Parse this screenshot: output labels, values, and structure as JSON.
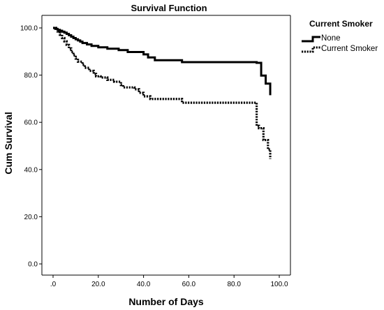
{
  "chart_data": {
    "type": "line",
    "step": true,
    "title": "Survival Function",
    "xlabel": "Number of Days",
    "ylabel": "Cum Survival",
    "xlim": [
      0,
      100
    ],
    "ylim": [
      0,
      100
    ],
    "x_ticks": [
      ".0",
      "20.0",
      "40.0",
      "60.0",
      "80.0",
      "100.0"
    ],
    "y_ticks": [
      "0.0",
      "20.0",
      "40.0",
      "60.0",
      "80.0",
      "100.0"
    ],
    "grid": false,
    "legend": {
      "title": "Current Smoker",
      "position": "top-right"
    },
    "series": [
      {
        "name": "None",
        "style": "solid",
        "color": "#000000",
        "x": [
          0,
          1,
          2,
          3,
          4,
          5,
          6,
          7,
          8,
          9,
          10,
          11,
          12,
          13,
          15,
          17,
          20,
          24,
          29,
          33,
          40,
          42,
          45,
          57,
          90,
          92,
          94,
          96
        ],
        "y": [
          100,
          99.6,
          99.2,
          98.8,
          98.4,
          98.0,
          97.5,
          96.9,
          96.3,
          95.7,
          95.2,
          94.7,
          94.2,
          93.6,
          93.0,
          92.4,
          91.8,
          91.2,
          90.6,
          89.8,
          88.8,
          87.5,
          86.3,
          85.5,
          85.2,
          79.8,
          76.4,
          71.5
        ]
      },
      {
        "name": "Current Smoker",
        "style": "dotted",
        "color": "#000000",
        "x": [
          0,
          2,
          3,
          4,
          5,
          6,
          7,
          8,
          9,
          10,
          11,
          13,
          14,
          16,
          18,
          19,
          21,
          24,
          27,
          30,
          31,
          36,
          38,
          40,
          43,
          57,
          90,
          91,
          93,
          95,
          96
        ],
        "y": [
          100,
          98.5,
          97.1,
          95.7,
          94.3,
          92.8,
          91.3,
          89.8,
          88.4,
          87.0,
          85.7,
          84.4,
          83.1,
          81.8,
          80.5,
          79.5,
          79.0,
          78.0,
          77.2,
          75.8,
          74.8,
          74.0,
          72.5,
          71.0,
          69.9,
          68.3,
          58.5,
          57.5,
          52.5,
          48.5,
          44.5
        ]
      }
    ]
  }
}
